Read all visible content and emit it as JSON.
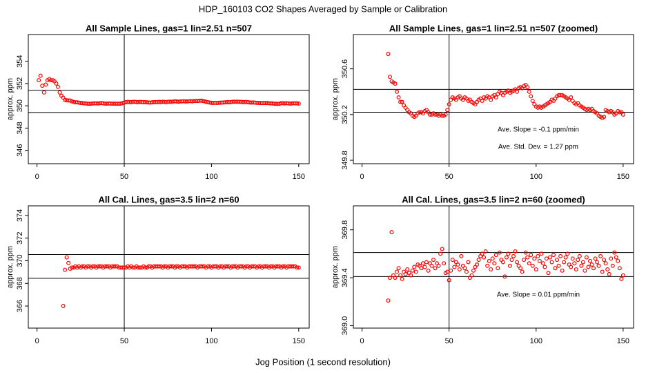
{
  "title": "HDP_160103  CO2 Shapes Averaged by Sample or Calibration",
  "xlabel": "Jog Position (1 second resolution)",
  "chart_data": [
    {
      "type": "scatter",
      "title": "All Sample Lines, gas=1 lin=2.51 n=507",
      "ylabel": "approx. ppm",
      "color": "#ff0000",
      "xlim": [
        -5,
        156
      ],
      "ylim": [
        344.8,
        356.4
      ],
      "xticks": [
        0,
        50,
        100,
        150
      ],
      "yticks": [
        346,
        348,
        350,
        352,
        354
      ],
      "hlines": [
        351.4,
        349.4
      ],
      "vline": 50,
      "x": [
        1,
        2,
        3,
        4,
        5,
        6,
        7,
        8,
        9,
        10,
        11,
        12,
        13,
        14,
        15,
        16,
        17,
        18,
        19,
        20,
        21,
        22,
        23,
        24,
        25,
        26,
        27,
        28,
        29,
        30,
        31,
        32,
        33,
        34,
        35,
        36,
        37,
        38,
        39,
        40,
        41,
        42,
        43,
        44,
        45,
        46,
        47,
        48,
        49,
        50,
        51,
        52,
        53,
        54,
        55,
        56,
        57,
        58,
        59,
        60,
        61,
        62,
        63,
        64,
        65,
        66,
        67,
        68,
        69,
        70,
        71,
        72,
        73,
        74,
        75,
        76,
        77,
        78,
        79,
        80,
        81,
        82,
        83,
        84,
        85,
        86,
        87,
        88,
        89,
        90,
        91,
        92,
        93,
        94,
        95,
        96,
        97,
        98,
        99,
        100,
        101,
        102,
        103,
        104,
        105,
        106,
        107,
        108,
        109,
        110,
        111,
        112,
        113,
        114,
        115,
        116,
        117,
        118,
        119,
        120,
        121,
        122,
        123,
        124,
        125,
        126,
        127,
        128,
        129,
        130,
        131,
        132,
        133,
        134,
        135,
        136,
        137,
        138,
        139,
        140,
        141,
        142,
        143,
        144,
        145,
        146,
        147,
        148,
        149,
        150
      ],
      "values": [
        352.3,
        352.7,
        351.8,
        351.2,
        351.9,
        352.3,
        352.4,
        352.3,
        352.3,
        352.2,
        352.0,
        351.7,
        351.2,
        350.9,
        350.73,
        350.53,
        350.49,
        350.48,
        350.47,
        350.4,
        350.35,
        350.31,
        350.31,
        350.28,
        350.26,
        350.24,
        350.22,
        350.21,
        350.19,
        350.18,
        350.19,
        350.21,
        350.22,
        350.22,
        350.21,
        350.23,
        350.24,
        350.22,
        350.2,
        350.2,
        350.21,
        350.2,
        350.2,
        350.19,
        350.2,
        350.19,
        350.19,
        350.2,
        350.24,
        350.29,
        350.33,
        350.35,
        350.34,
        350.33,
        350.35,
        350.36,
        350.34,
        350.33,
        350.35,
        350.34,
        350.32,
        350.33,
        350.31,
        350.3,
        350.29,
        350.31,
        350.33,
        350.34,
        350.32,
        350.35,
        350.34,
        350.36,
        350.35,
        350.33,
        350.36,
        350.37,
        350.35,
        350.38,
        350.4,
        350.39,
        350.37,
        350.39,
        350.4,
        350.41,
        350.39,
        350.4,
        350.41,
        350.42,
        350.4,
        350.43,
        350.44,
        350.43,
        350.45,
        350.46,
        350.44,
        350.4,
        350.36,
        350.32,
        350.29,
        350.27,
        350.26,
        350.27,
        350.26,
        350.27,
        350.28,
        350.29,
        350.3,
        350.31,
        350.33,
        350.32,
        350.34,
        350.36,
        350.37,
        350.37,
        350.37,
        350.36,
        350.35,
        350.34,
        350.33,
        350.35,
        350.32,
        350.3,
        350.29,
        350.3,
        350.28,
        350.27,
        350.26,
        350.25,
        350.24,
        350.25,
        350.24,
        350.25,
        350.23,
        350.22,
        350.21,
        350.19,
        350.18,
        350.17,
        350.18,
        350.24,
        350.23,
        350.22,
        350.23,
        350.22,
        350.2,
        350.21,
        350.23,
        350.22,
        350.22,
        350.2
      ]
    },
    {
      "type": "scatter",
      "title": "All Sample Lines, gas=1 lin=2.51 n=507 (zoomed)",
      "ylabel": "approx. ppm",
      "color": "#ff0000",
      "xlim": [
        -5,
        156
      ],
      "ylim": [
        349.77,
        350.9
      ],
      "xticks": [
        0,
        50,
        100,
        150
      ],
      "yticks": [
        349.8,
        350.2,
        350.6
      ],
      "hlines": [
        350.42,
        350.22
      ],
      "vline": 50,
      "annotations": [
        "Ave. Slope =  -0.1  ppm/min",
        "Ave. Std. Dev. =  1.27  ppm"
      ],
      "x": [
        15,
        16,
        17,
        18,
        19,
        20,
        21,
        22,
        23,
        24,
        25,
        26,
        27,
        28,
        29,
        30,
        31,
        32,
        33,
        34,
        35,
        36,
        37,
        38,
        39,
        40,
        41,
        42,
        43,
        44,
        45,
        46,
        47,
        48,
        49,
        50,
        51,
        52,
        53,
        54,
        55,
        56,
        57,
        58,
        59,
        60,
        61,
        62,
        63,
        64,
        65,
        66,
        67,
        68,
        69,
        70,
        71,
        72,
        73,
        74,
        75,
        76,
        77,
        78,
        79,
        80,
        81,
        82,
        83,
        84,
        85,
        86,
        87,
        88,
        89,
        90,
        91,
        92,
        93,
        94,
        95,
        96,
        97,
        98,
        99,
        100,
        101,
        102,
        103,
        104,
        105,
        106,
        107,
        108,
        109,
        110,
        111,
        112,
        113,
        114,
        115,
        116,
        117,
        118,
        119,
        120,
        121,
        122,
        123,
        124,
        125,
        126,
        127,
        128,
        129,
        130,
        131,
        132,
        133,
        134,
        135,
        136,
        137,
        138,
        139,
        140,
        141,
        142,
        143,
        144,
        145,
        146,
        147,
        148,
        149,
        150
      ],
      "values": [
        350.73,
        350.53,
        350.49,
        350.48,
        350.47,
        350.4,
        350.35,
        350.31,
        350.31,
        350.28,
        350.26,
        350.24,
        350.22,
        350.21,
        350.19,
        350.18,
        350.19,
        350.21,
        350.22,
        350.22,
        350.21,
        350.23,
        350.24,
        350.22,
        350.2,
        350.2,
        350.21,
        350.2,
        350.2,
        350.19,
        350.2,
        350.19,
        350.19,
        350.2,
        350.24,
        350.29,
        350.33,
        350.35,
        350.34,
        350.33,
        350.35,
        350.36,
        350.34,
        350.33,
        350.35,
        350.34,
        350.32,
        350.33,
        350.31,
        350.3,
        350.29,
        350.31,
        350.33,
        350.34,
        350.32,
        350.35,
        350.34,
        350.36,
        350.35,
        350.33,
        350.36,
        350.37,
        350.35,
        350.38,
        350.4,
        350.39,
        350.37,
        350.39,
        350.4,
        350.41,
        350.39,
        350.4,
        350.41,
        350.42,
        350.4,
        350.43,
        350.44,
        350.43,
        350.45,
        350.46,
        350.44,
        350.4,
        350.36,
        350.32,
        350.29,
        350.27,
        350.26,
        350.27,
        350.26,
        350.27,
        350.28,
        350.29,
        350.3,
        350.31,
        350.33,
        350.32,
        350.34,
        350.36,
        350.37,
        350.37,
        350.37,
        350.36,
        350.35,
        350.34,
        350.33,
        350.35,
        350.32,
        350.3,
        350.29,
        350.3,
        350.28,
        350.27,
        350.26,
        350.25,
        350.24,
        350.25,
        350.24,
        350.25,
        350.23,
        350.22,
        350.21,
        350.19,
        350.18,
        350.17,
        350.18,
        350.24,
        350.23,
        350.22,
        350.23,
        350.22,
        350.2,
        350.21,
        350.23,
        350.22,
        350.22,
        350.2
      ]
    },
    {
      "type": "scatter",
      "title": "All Cal. Lines, gas=3.5 lin=2 n=60",
      "ylabel": "approx. ppm",
      "color": "#ff0000",
      "xlim": [
        -5,
        156
      ],
      "ylim": [
        364.05,
        374.85
      ],
      "xticks": [
        0,
        50,
        100,
        150
      ],
      "yticks": [
        366,
        368,
        370,
        372,
        374
      ],
      "hlines": [
        370.55,
        368.45
      ],
      "vline": 50,
      "x": [
        15,
        16,
        17,
        18,
        19,
        20,
        21,
        22,
        23,
        24,
        25,
        26,
        27,
        28,
        29,
        30,
        31,
        32,
        33,
        34,
        35,
        36,
        37,
        38,
        39,
        40,
        41,
        42,
        43,
        44,
        45,
        46,
        47,
        48,
        49,
        50,
        51,
        52,
        53,
        54,
        55,
        56,
        57,
        58,
        59,
        60,
        61,
        62,
        63,
        64,
        65,
        66,
        67,
        68,
        69,
        70,
        71,
        72,
        73,
        74,
        75,
        76,
        77,
        78,
        79,
        80,
        81,
        82,
        83,
        84,
        85,
        86,
        87,
        88,
        89,
        90,
        91,
        92,
        93,
        94,
        95,
        96,
        97,
        98,
        99,
        100,
        101,
        102,
        103,
        104,
        105,
        106,
        107,
        108,
        109,
        110,
        111,
        112,
        113,
        114,
        115,
        116,
        117,
        118,
        119,
        120,
        121,
        122,
        123,
        124,
        125,
        126,
        127,
        128,
        129,
        130,
        131,
        132,
        133,
        134,
        135,
        136,
        137,
        138,
        139,
        140,
        141,
        142,
        143,
        144,
        145,
        146,
        147,
        148,
        149,
        150
      ],
      "values": [
        366.0,
        369.2,
        370.3,
        369.8,
        369.3,
        369.4,
        369.4,
        369.5,
        369.4,
        369.5,
        369.4,
        369.5,
        369.5,
        369.4,
        369.5,
        369.5,
        369.4,
        369.5,
        369.5,
        369.4,
        369.5,
        369.5,
        369.5,
        369.4,
        369.5,
        369.5,
        369.5,
        369.4,
        369.5,
        369.5,
        369.5,
        369.5,
        369.4,
        369.4,
        369.4,
        369.4,
        369.4,
        369.5,
        369.4,
        369.5,
        369.4,
        369.4,
        369.5,
        369.4,
        369.4,
        369.4,
        369.5,
        369.4,
        369.4,
        369.5,
        369.5,
        369.4,
        369.5,
        369.5,
        369.5,
        369.5,
        369.5,
        369.4,
        369.5,
        369.5,
        369.4,
        369.5,
        369.5,
        369.5,
        369.4,
        369.5,
        369.5,
        369.4,
        369.5,
        369.5,
        369.5,
        369.4,
        369.5,
        369.5,
        369.5,
        369.5,
        369.5,
        369.4,
        369.5,
        369.5,
        369.5,
        369.5,
        369.4,
        369.5,
        369.5,
        369.4,
        369.5,
        369.5,
        369.5,
        369.4,
        369.5,
        369.5,
        369.4,
        369.5,
        369.5,
        369.5,
        369.4,
        369.5,
        369.5,
        369.5,
        369.4,
        369.5,
        369.5,
        369.5,
        369.4,
        369.5,
        369.5,
        369.4,
        369.5,
        369.5,
        369.5,
        369.4,
        369.5,
        369.5,
        369.4,
        369.5,
        369.5,
        369.5,
        369.4,
        369.5,
        369.5,
        369.4,
        369.5,
        369.5,
        369.5,
        369.4,
        369.5,
        369.5,
        369.4,
        369.5,
        369.5,
        369.5,
        369.5,
        369.5,
        369.4,
        369.4
      ]
    },
    {
      "type": "scatter",
      "title": "All Cal. Lines, gas=3.5 lin=2 n=60 (zoomed)",
      "ylabel": "approx. ppm",
      "color": "#ff0000",
      "xlim": [
        -5,
        156
      ],
      "ylim": [
        368.98,
        370.0
      ],
      "xticks": [
        0,
        50,
        100,
        150
      ],
      "yticks": [
        {
          "value": 369,
          "label": "369.0"
        },
        369.4,
        369.8
      ],
      "hlines": [
        369.61,
        369.41
      ],
      "vline": 50,
      "annotations": [
        "Ave. Slope =  0.01  ppm/min"
      ],
      "x": [
        15,
        16,
        17,
        18,
        19,
        20,
        21,
        22,
        23,
        24,
        25,
        26,
        27,
        28,
        29,
        30,
        31,
        32,
        33,
        34,
        35,
        36,
        37,
        38,
        39,
        40,
        41,
        42,
        43,
        44,
        45,
        46,
        47,
        48,
        49,
        50,
        51,
        52,
        53,
        54,
        55,
        56,
        57,
        58,
        59,
        60,
        61,
        62,
        63,
        64,
        65,
        66,
        67,
        68,
        69,
        70,
        71,
        72,
        73,
        74,
        75,
        76,
        77,
        78,
        79,
        80,
        81,
        82,
        83,
        84,
        85,
        86,
        87,
        88,
        89,
        90,
        91,
        92,
        93,
        94,
        95,
        96,
        97,
        98,
        99,
        100,
        101,
        102,
        103,
        104,
        105,
        106,
        107,
        108,
        109,
        110,
        111,
        112,
        113,
        114,
        115,
        116,
        117,
        118,
        119,
        120,
        121,
        122,
        123,
        124,
        125,
        126,
        127,
        128,
        129,
        130,
        131,
        132,
        133,
        134,
        135,
        136,
        137,
        138,
        139,
        140,
        141,
        142,
        143,
        144,
        145,
        146,
        147,
        148,
        149,
        150
      ],
      "values": [
        369.21,
        369.4,
        369.78,
        369.42,
        369.4,
        369.45,
        369.48,
        369.42,
        369.39,
        369.45,
        369.43,
        369.47,
        369.44,
        369.42,
        369.46,
        369.49,
        369.45,
        369.51,
        369.5,
        369.48,
        369.52,
        369.49,
        369.53,
        369.46,
        369.52,
        369.5,
        369.55,
        369.48,
        369.52,
        369.5,
        369.6,
        369.64,
        369.52,
        369.44,
        369.45,
        369.38,
        369.46,
        369.55,
        369.49,
        369.53,
        369.51,
        369.47,
        369.58,
        369.5,
        369.48,
        369.45,
        369.53,
        369.4,
        369.42,
        369.46,
        369.49,
        369.51,
        369.55,
        369.58,
        369.6,
        369.57,
        369.62,
        369.5,
        369.54,
        369.47,
        369.56,
        369.52,
        369.59,
        369.48,
        369.61,
        369.55,
        369.53,
        369.41,
        369.57,
        369.6,
        369.5,
        369.55,
        369.58,
        369.62,
        369.53,
        369.5,
        369.48,
        369.45,
        369.55,
        369.61,
        369.57,
        369.52,
        369.59,
        369.5,
        369.56,
        369.47,
        369.58,
        369.54,
        369.6,
        369.52,
        369.49,
        369.56,
        369.44,
        369.57,
        369.53,
        369.59,
        369.48,
        369.55,
        369.5,
        369.58,
        369.46,
        369.53,
        369.57,
        369.6,
        369.51,
        369.49,
        369.56,
        369.52,
        369.47,
        369.55,
        369.58,
        369.5,
        369.53,
        369.46,
        369.57,
        369.49,
        369.54,
        369.51,
        369.48,
        369.56,
        369.53,
        369.5,
        369.58,
        369.45,
        369.55,
        369.52,
        369.47,
        369.43,
        369.56,
        369.5,
        369.61,
        369.57,
        369.54,
        369.48,
        369.39,
        369.42
      ]
    }
  ]
}
